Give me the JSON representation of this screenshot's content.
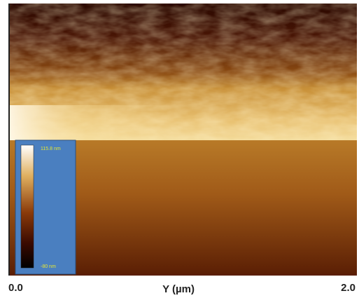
{
  "image": {
    "x_axis": {
      "label": "Y (µm)",
      "ticks": [
        "0.0",
        "2.0"
      ]
    },
    "colorbar": {
      "max_label": "115.8 nm",
      "min_label": "-80 nm"
    }
  }
}
